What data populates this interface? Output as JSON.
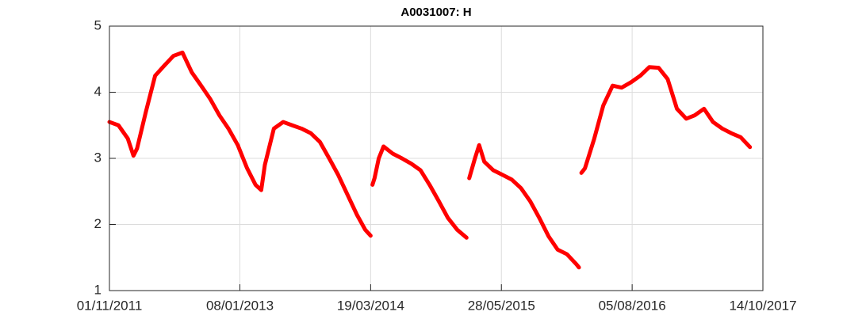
{
  "chart_data": {
    "type": "line",
    "title": "A0031007: H",
    "x": [
      "01/11/2011",
      "01/12/2011",
      "01/01/2012",
      "20/01/2012",
      "01/02/2012",
      "01/03/2012",
      "01/04/2012",
      "01/05/2012",
      "01/06/2012",
      "01/07/2012",
      "01/08/2012",
      "01/09/2012",
      "01/10/2012",
      "01/11/2012",
      "01/12/2012",
      "01/01/2013",
      "01/02/2013",
      "01/03/2013",
      "20/03/2013",
      "01/04/2013",
      "01/05/2013",
      "01/06/2013",
      "01/07/2013",
      "01/08/2013",
      "01/09/2013",
      "01/10/2013",
      "01/11/2013",
      "01/12/2013",
      "01/01/2014",
      "01/02/2014",
      "01/03/2014",
      "19/03/2014",
      null,
      "25/03/2014",
      "01/04/2014",
      "15/04/2014",
      "01/05/2014",
      "01/06/2014",
      "01/07/2014",
      "01/08/2014",
      "01/09/2014",
      "01/10/2014",
      "01/11/2014",
      "01/12/2014",
      "01/01/2015",
      "01/02/2015",
      null,
      "10/02/2015",
      "01/03/2015",
      "15/03/2015",
      "01/04/2015",
      "01/05/2015",
      "01/06/2015",
      "01/07/2015",
      "01/08/2015",
      "01/09/2015",
      "01/10/2015",
      "01/11/2015",
      "01/12/2015",
      "01/01/2016",
      "01/02/2016",
      "10/02/2016",
      null,
      "18/02/2016",
      "01/03/2016",
      "01/04/2016",
      "01/05/2016",
      "01/06/2016",
      "01/07/2016",
      "01/08/2016",
      "01/09/2016",
      "01/10/2016",
      "01/11/2016",
      "01/12/2016",
      "01/01/2017",
      "01/02/2017",
      "01/03/2017",
      "01/04/2017",
      "01/05/2017",
      "01/06/2017",
      "01/07/2017",
      "01/08/2017",
      "01/09/2017"
    ],
    "series": [
      {
        "color": "#ff0000",
        "values": [
          3.55,
          3.5,
          3.3,
          3.04,
          3.15,
          3.7,
          4.25,
          4.4,
          4.55,
          4.6,
          4.3,
          4.1,
          3.9,
          3.65,
          3.45,
          3.2,
          2.85,
          2.6,
          2.52,
          2.9,
          3.45,
          3.55,
          3.5,
          3.45,
          3.38,
          3.25,
          3.0,
          2.75,
          2.45,
          2.15,
          1.92,
          1.83,
          null,
          2.6,
          2.7,
          3.0,
          3.18,
          3.07,
          3.0,
          2.92,
          2.82,
          2.6,
          2.35,
          2.1,
          1.92,
          1.8,
          null,
          2.7,
          3.0,
          3.2,
          2.95,
          2.82,
          2.75,
          2.68,
          2.55,
          2.35,
          2.1,
          1.82,
          1.62,
          1.55,
          1.4,
          1.35,
          null,
          2.78,
          2.85,
          3.3,
          3.8,
          4.1,
          4.07,
          4.15,
          4.25,
          4.38,
          4.37,
          4.2,
          3.75,
          3.6,
          3.65,
          3.75,
          3.55,
          3.45,
          3.38,
          3.32,
          3.17
        ]
      }
    ],
    "xlim": [
      "01/11/2011",
      "14/10/2017"
    ],
    "xticks": [
      "01/11/2011",
      "08/01/2013",
      "19/03/2014",
      "28/05/2015",
      "05/08/2016",
      "14/10/2017"
    ],
    "ylim": [
      1,
      5
    ],
    "yticks": [
      1,
      2,
      3,
      4,
      5
    ],
    "grid": true
  }
}
